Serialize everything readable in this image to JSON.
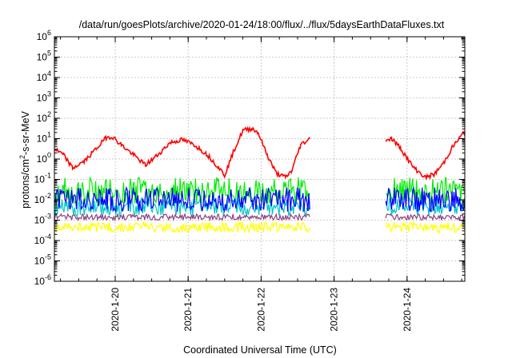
{
  "chart_data": {
    "type": "line",
    "title": "/data/run/goesPlots/archive/2020-01-24/18:00/flux/../flux/5daysEarthDataFluxes.txt",
    "xlabel": "Coordinated Universal Time (UTC)",
    "ylabel_parts": [
      "protons/cm",
      "2",
      "-s-sr-MeV"
    ],
    "y_scale": "log",
    "ylim": [
      1e-06,
      1000000.0
    ],
    "y_tick_exponents": [
      -6,
      -5,
      -4,
      -3,
      -2,
      -1,
      0,
      1,
      2,
      3,
      4,
      5,
      6
    ],
    "x_axis": "date",
    "xlim": [
      "2020-01-19T04:00",
      "2020-01-24T19:00"
    ],
    "x_tick_labels": [
      "2020-1-20",
      "2020-1-21",
      "2020-1-22",
      "2020-1-23",
      "2020-1-24"
    ],
    "x_tick_dates": [
      "2020-01-20T00:00",
      "2020-01-21T00:00",
      "2020-01-22T00:00",
      "2020-01-23T00:00",
      "2020-01-24T00:00"
    ],
    "grid": true,
    "data_gap": [
      "2020-01-22T16:00",
      "2020-01-23T17:00"
    ],
    "series": [
      {
        "color": "#ff0000",
        "values_log10": [
          [
            "2020-01-19T04:00",
            0.5
          ],
          [
            "2020-01-19T07:00",
            0.2
          ],
          [
            "2020-01-19T10:00",
            -0.45
          ],
          [
            "2020-01-19T14:00",
            -0.1
          ],
          [
            "2020-01-19T18:00",
            0.55
          ],
          [
            "2020-01-19T21:00",
            1.05
          ],
          [
            "2020-01-19T23:00",
            1.1
          ],
          [
            "2020-01-20T02:00",
            0.7
          ],
          [
            "2020-01-20T06:00",
            0.2
          ],
          [
            "2020-01-20T10:00",
            -0.3
          ],
          [
            "2020-01-20T14:00",
            0.2
          ],
          [
            "2020-01-20T18:00",
            0.8
          ],
          [
            "2020-01-20T22:00",
            0.95
          ],
          [
            "2020-01-21T02:00",
            0.7
          ],
          [
            "2020-01-21T06:00",
            0.25
          ],
          [
            "2020-01-21T10:00",
            -0.4
          ],
          [
            "2020-01-21T12:00",
            -0.8
          ],
          [
            "2020-01-21T15:00",
            0.4
          ],
          [
            "2020-01-21T18:00",
            1.4
          ],
          [
            "2020-01-21T21:00",
            1.5
          ],
          [
            "2020-01-21T23:00",
            1.3
          ],
          [
            "2020-01-22T02:00",
            0.2
          ],
          [
            "2020-01-22T05:00",
            -0.7
          ],
          [
            "2020-01-22T08:00",
            -0.9
          ],
          [
            "2020-01-22T10:00",
            -0.6
          ],
          [
            "2020-01-22T13:00",
            0.7
          ],
          [
            "2020-01-22T16:00",
            1.0
          ],
          [
            "2020-01-23T17:00",
            0.95
          ],
          [
            "2020-01-23T19:00",
            1.0
          ],
          [
            "2020-01-23T22:00",
            0.5
          ],
          [
            "2020-01-24T02:00",
            -0.4
          ],
          [
            "2020-01-24T06:00",
            -0.9
          ],
          [
            "2020-01-24T09:00",
            -0.75
          ],
          [
            "2020-01-24T12:00",
            -0.2
          ],
          [
            "2020-01-24T15:00",
            0.6
          ],
          [
            "2020-01-24T19:00",
            1.35
          ]
        ]
      },
      {
        "color": "#00ee00",
        "band_log10": [
          -2.2,
          -0.9
        ],
        "level_log10": -1.6
      },
      {
        "color": "#00c8c8",
        "band_log10": [
          -2.8,
          -1.9
        ],
        "level_log10": -2.3
      },
      {
        "color": "#0000ff",
        "band_log10": [
          -2.6,
          -1.4
        ],
        "level_log10": -2.0
      },
      {
        "color": "#8b4080",
        "band_log10": [
          -3.0,
          -2.7
        ],
        "level_log10": -2.85
      },
      {
        "color": "#ffff00",
        "band_log10": [
          -3.6,
          -3.1
        ],
        "level_log10": -3.35
      }
    ]
  }
}
